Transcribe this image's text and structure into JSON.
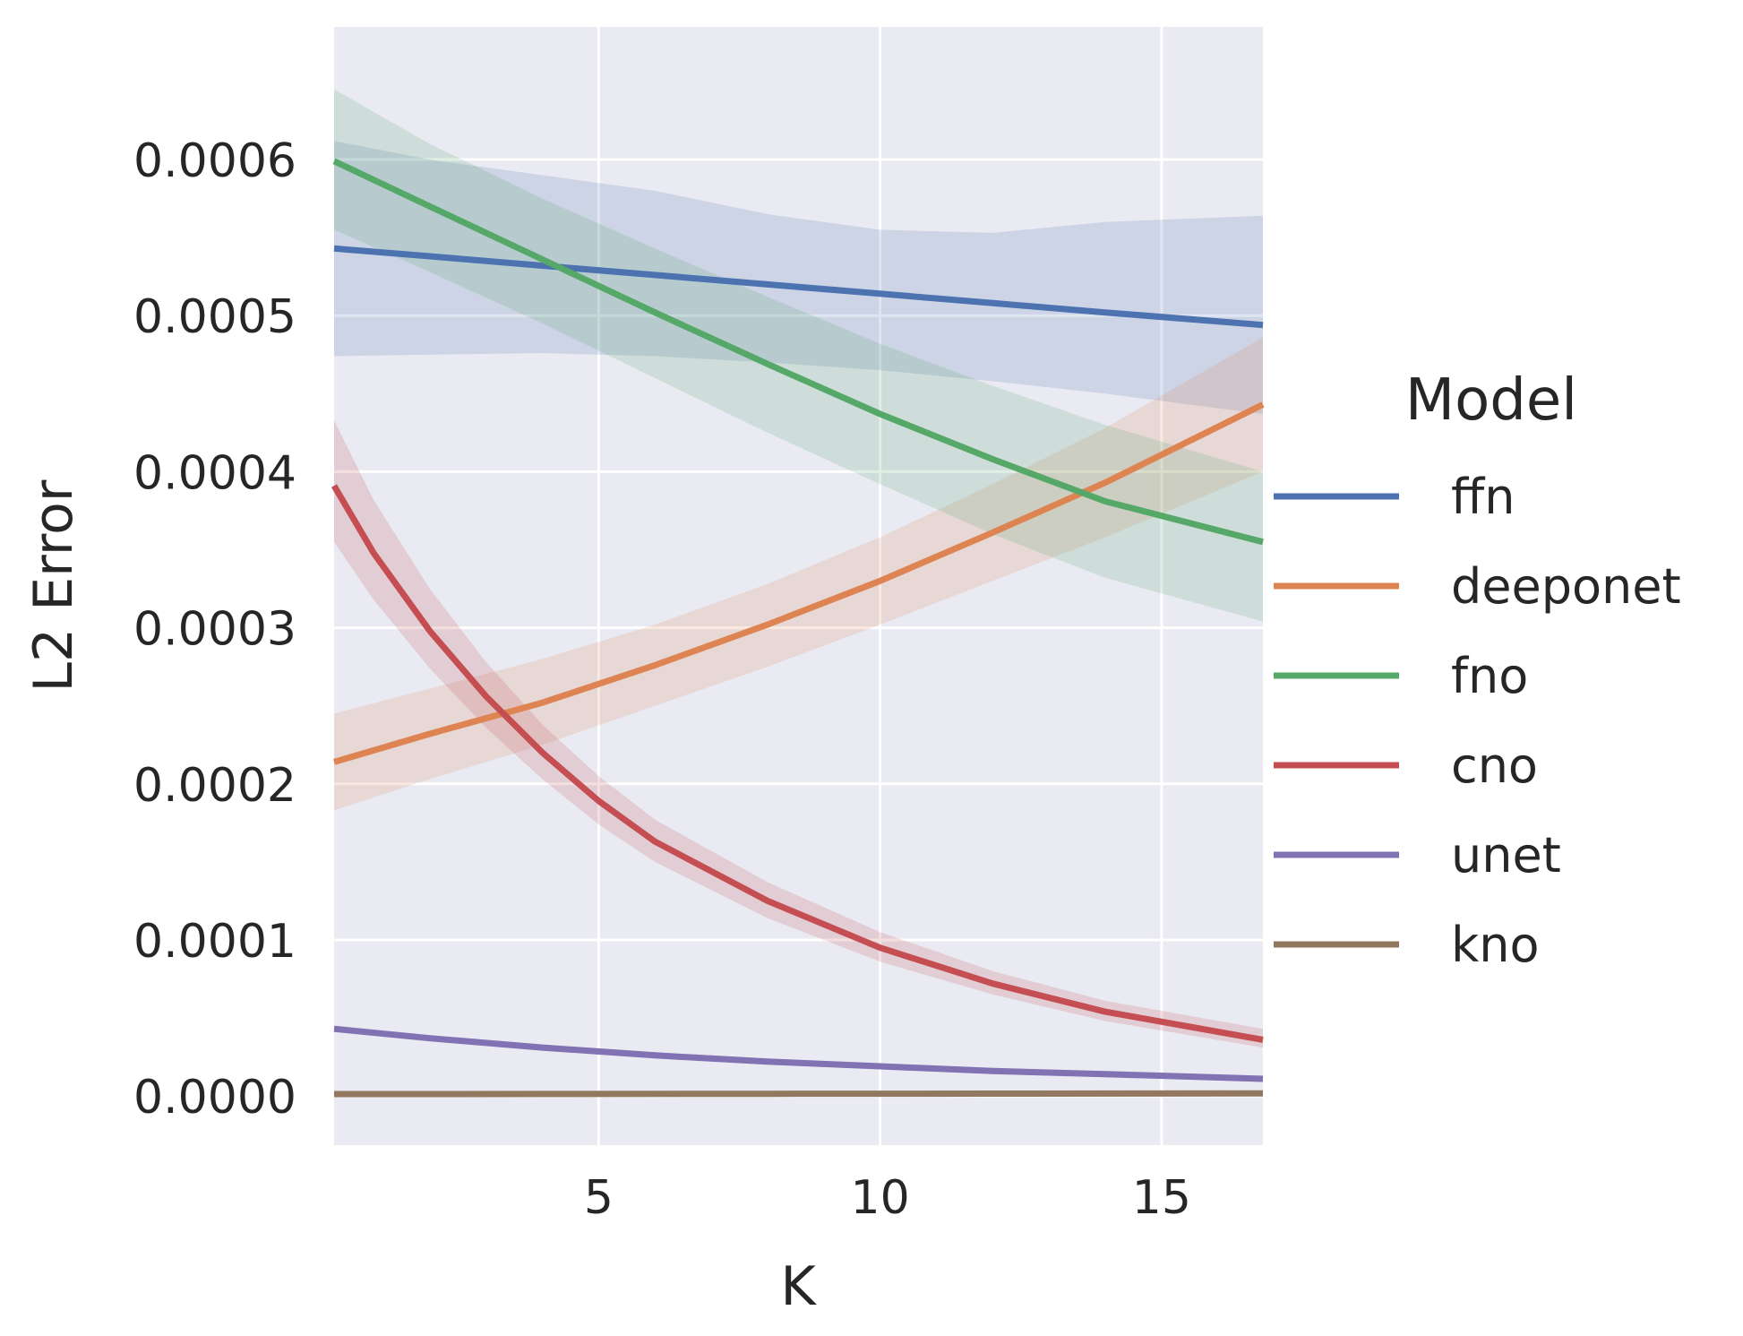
{
  "chart_data": {
    "type": "line",
    "title": "",
    "xlabel": "K",
    "ylabel": "L2 Error",
    "xlim": [
      0.3,
      16.8
    ],
    "ylim": [
      -3.15e-05,
      0.000685
    ],
    "xticks": [
      5,
      10,
      15
    ],
    "xtick_labels": [
      "5",
      "10",
      "15"
    ],
    "yticks": [
      0.0,
      0.0001,
      0.0002,
      0.0003,
      0.0004,
      0.0005,
      0.0006
    ],
    "ytick_labels": [
      "0.0000",
      "0.0001",
      "0.0002",
      "0.0003",
      "0.0004",
      "0.0005",
      "0.0006"
    ],
    "grid": true,
    "background_color": "#eaeaf2",
    "legend": {
      "title": "Model",
      "placement": "center-right-outside"
    },
    "series": [
      {
        "name": "ffn",
        "color": "#4c72b0",
        "x": [
          0.3,
          2,
          4,
          6,
          8,
          10,
          12,
          14,
          16.8
        ],
        "y": [
          0.000543,
          0.000538,
          0.000532,
          0.000526,
          0.00052,
          0.000514,
          0.000508,
          0.000502,
          0.000494
        ],
        "ci_low": [
          0.000474,
          0.000475,
          0.000476,
          0.000474,
          0.00047,
          0.000465,
          0.000458,
          0.00045,
          0.000437
        ],
        "ci_high": [
          0.000612,
          0.0006,
          0.00059,
          0.00058,
          0.000565,
          0.000555,
          0.000553,
          0.00056,
          0.000564
        ]
      },
      {
        "name": "deeponet",
        "color": "#dd8452",
        "x": [
          0.3,
          2,
          4,
          6,
          8,
          10,
          12,
          14,
          16.8
        ],
        "y": [
          0.000214,
          0.000232,
          0.000252,
          0.000276,
          0.000302,
          0.00033,
          0.000361,
          0.000393,
          0.000443
        ],
        "ci_low": [
          0.000183,
          0.000203,
          0.000225,
          0.00025,
          0.000275,
          0.000302,
          0.00033,
          0.000358,
          0.0004
        ],
        "ci_high": [
          0.000245,
          0.000261,
          0.00028,
          0.000302,
          0.000328,
          0.000358,
          0.000392,
          0.000428,
          0.000486
        ]
      },
      {
        "name": "fno",
        "color": "#55a868",
        "x": [
          0.3,
          2,
          4,
          6,
          8,
          10,
          12,
          14,
          16.8
        ],
        "y": [
          0.000599,
          0.00057,
          0.000536,
          0.000502,
          0.000469,
          0.000437,
          0.000408,
          0.000381,
          0.000355
        ],
        "ci_low": [
          0.000555,
          0.000528,
          0.000495,
          0.00046,
          0.000425,
          0.000392,
          0.00036,
          0.000332,
          0.000304
        ],
        "ci_high": [
          0.000645,
          0.00061,
          0.000575,
          0.000543,
          0.000512,
          0.000482,
          0.000455,
          0.00043,
          0.0004
        ]
      },
      {
        "name": "cno",
        "color": "#c44e52",
        "x": [
          0.3,
          1,
          2,
          3,
          4,
          5,
          6,
          8,
          10,
          12,
          14,
          16.8
        ],
        "y": [
          0.000391,
          0.000348,
          0.000298,
          0.000256,
          0.00022,
          0.000189,
          0.000163,
          0.000125,
          9.5e-05,
          7.2e-05,
          5.4e-05,
          3.6e-05
        ],
        "ci_low": [
          0.000355,
          0.000318,
          0.000274,
          0.000236,
          0.000203,
          0.000174,
          0.00015,
          0.000114,
          8.6e-05,
          6.5e-05,
          4.8e-05,
          3.1e-05
        ],
        "ci_high": [
          0.000433,
          0.000382,
          0.000325,
          0.000278,
          0.000238,
          0.000205,
          0.000177,
          0.000137,
          0.000105,
          8e-05,
          6.1e-05,
          4.3e-05
        ]
      },
      {
        "name": "unet",
        "color": "#8172b3",
        "x": [
          0.3,
          2,
          4,
          6,
          8,
          10,
          12,
          14,
          16.8
        ],
        "y": [
          4.3e-05,
          3.7e-05,
          3.1e-05,
          2.6e-05,
          2.2e-05,
          1.9e-05,
          1.6e-05,
          1.4e-05,
          1.1e-05
        ],
        "ci_low": [
          4.1e-05,
          3.5e-05,
          2.9e-05,
          2.4e-05,
          2e-05,
          1.7e-05,
          1.4e-05,
          1.2e-05,
          9e-06
        ],
        "ci_high": [
          4.5e-05,
          3.9e-05,
          3.3e-05,
          2.8e-05,
          2.4e-05,
          2.1e-05,
          1.8e-05,
          1.6e-05,
          1.3e-05
        ]
      },
      {
        "name": "kno",
        "color": "#937860",
        "x": [
          0.3,
          4,
          8,
          12,
          16.8
        ],
        "y": [
          1.2e-06,
          1.3e-06,
          1.4e-06,
          1.5e-06,
          1.7e-06
        ],
        "ci_low": [
          6e-07,
          7e-07,
          8e-07,
          9e-07,
          1.1e-06
        ],
        "ci_high": [
          1.8e-06,
          1.9e-06,
          2e-06,
          2.1e-06,
          2.3e-06
        ]
      }
    ]
  }
}
